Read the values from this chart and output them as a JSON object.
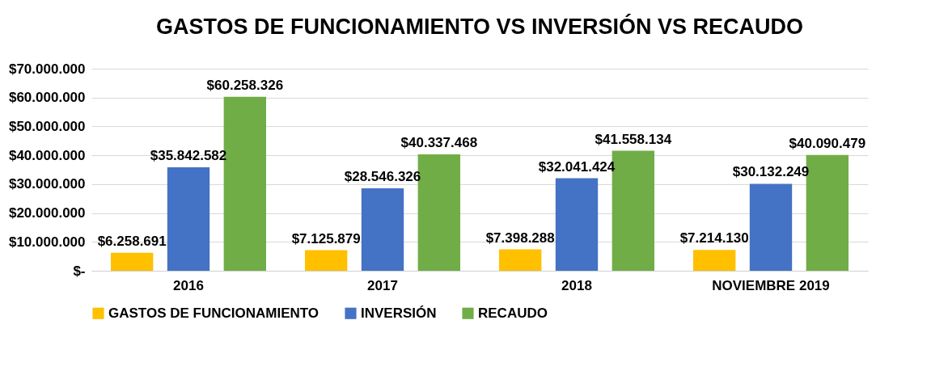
{
  "chart_data": {
    "type": "bar",
    "title": "GASTOS DE FUNCIONAMIENTO VS INVERSIÓN VS RECAUDO",
    "categories": [
      "2016",
      "2017",
      "2018",
      "NOVIEMBRE 2019"
    ],
    "series": [
      {
        "name": "GASTOS DE FUNCIONAMIENTO",
        "color": "#ffc000",
        "values": [
          6258691,
          7125879,
          7398288,
          7214130
        ],
        "value_labels": [
          "$6.258.691",
          "$7.125.879",
          "$7.398.288",
          "$7.214.130"
        ]
      },
      {
        "name": "INVERSIÓN",
        "color": "#4472c4",
        "values": [
          35842582,
          28546326,
          32041424,
          30132249
        ],
        "value_labels": [
          "$35.842.582",
          "$28.546.326",
          "$32.041.424",
          "$30.132.249"
        ]
      },
      {
        "name": "RECAUDO",
        "color": "#70ad47",
        "values": [
          60258326,
          40337468,
          41558134,
          40090479
        ],
        "value_labels": [
          "$60.258.326",
          "$40.337.468",
          "$41.558.134",
          "$40.090.479"
        ]
      }
    ],
    "ylim": [
      0,
      70000000
    ],
    "yticks": [
      {
        "value": 0,
        "label": "$-"
      },
      {
        "value": 10000000,
        "label": "$10.000.000"
      },
      {
        "value": 20000000,
        "label": "$20.000.000"
      },
      {
        "value": 30000000,
        "label": "$30.000.000"
      },
      {
        "value": 40000000,
        "label": "$40.000.000"
      },
      {
        "value": 50000000,
        "label": "$50.000.000"
      },
      {
        "value": 60000000,
        "label": "$60.000.000"
      },
      {
        "value": 70000000,
        "label": "$70.000.000"
      }
    ],
    "grid": "y",
    "legend": "bottom"
  }
}
